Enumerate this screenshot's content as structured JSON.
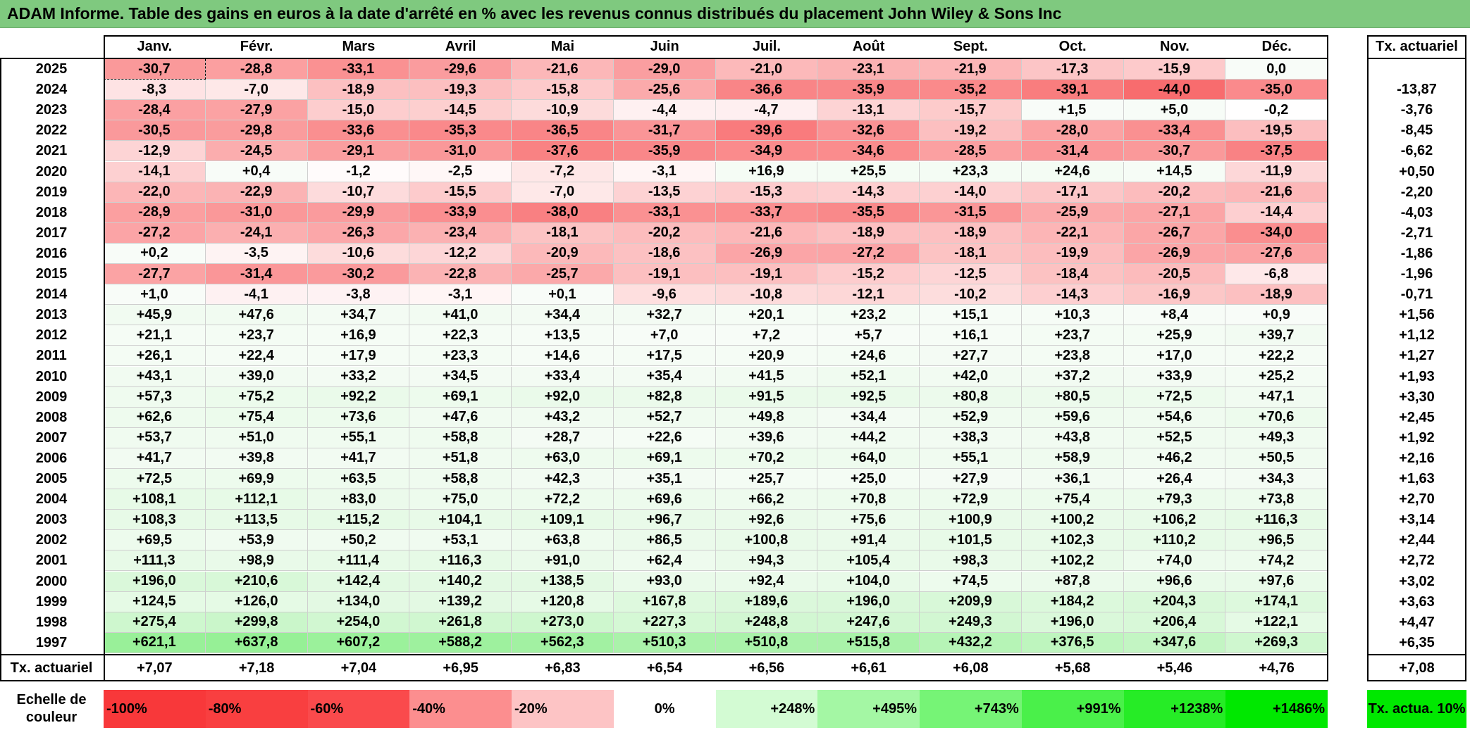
{
  "title": "ADAM Informe. Table des gains en euros à la date d'arrêté en % avec les revenus connus distribués du placement John Wiley & Sons Inc",
  "months": [
    "Janv.",
    "Févr.",
    "Mars",
    "Avril",
    "Mai",
    "Juin",
    "Juil.",
    "Août",
    "Sept.",
    "Oct.",
    "Nov.",
    "Déc."
  ],
  "rate_header": "Tx. actuariel",
  "rows": [
    {
      "year": "2025",
      "values": [
        "-30,7",
        "-28,8",
        "-33,1",
        "-29,6",
        "-21,6",
        "-29,0",
        "-21,0",
        "-23,1",
        "-21,9",
        "-17,3",
        "-15,9",
        "0,0"
      ],
      "rate": ""
    },
    {
      "year": "2024",
      "values": [
        "-8,3",
        "-7,0",
        "-18,9",
        "-19,3",
        "-15,8",
        "-25,6",
        "-36,6",
        "-35,9",
        "-35,2",
        "-39,1",
        "-44,0",
        "-35,0"
      ],
      "rate": "-13,87"
    },
    {
      "year": "2023",
      "values": [
        "-28,4",
        "-27,9",
        "-15,0",
        "-14,5",
        "-10,9",
        "-4,4",
        "-4,7",
        "-13,1",
        "-15,7",
        "+1,5",
        "+5,0",
        "-0,2"
      ],
      "rate": "-3,76"
    },
    {
      "year": "2022",
      "values": [
        "-30,5",
        "-29,8",
        "-33,6",
        "-35,3",
        "-36,5",
        "-31,7",
        "-39,6",
        "-32,6",
        "-19,2",
        "-28,0",
        "-33,4",
        "-19,5"
      ],
      "rate": "-8,45"
    },
    {
      "year": "2021",
      "values": [
        "-12,9",
        "-24,5",
        "-29,1",
        "-31,0",
        "-37,6",
        "-35,9",
        "-34,9",
        "-34,6",
        "-28,5",
        "-31,4",
        "-30,7",
        "-37,5"
      ],
      "rate": "-6,62"
    },
    {
      "year": "2020",
      "values": [
        "-14,1",
        "+0,4",
        "-1,2",
        "-2,5",
        "-7,2",
        "-3,1",
        "+16,9",
        "+25,5",
        "+23,3",
        "+24,6",
        "+14,5",
        "-11,9"
      ],
      "rate": "+0,50"
    },
    {
      "year": "2019",
      "values": [
        "-22,0",
        "-22,9",
        "-10,7",
        "-15,5",
        "-7,0",
        "-13,5",
        "-15,3",
        "-14,3",
        "-14,0",
        "-17,1",
        "-20,2",
        "-21,6"
      ],
      "rate": "-2,20"
    },
    {
      "year": "2018",
      "values": [
        "-28,9",
        "-31,0",
        "-29,9",
        "-33,9",
        "-38,0",
        "-33,1",
        "-33,7",
        "-35,5",
        "-31,5",
        "-25,9",
        "-27,1",
        "-14,4"
      ],
      "rate": "-4,03"
    },
    {
      "year": "2017",
      "values": [
        "-27,2",
        "-24,1",
        "-26,3",
        "-23,4",
        "-18,1",
        "-20,2",
        "-21,6",
        "-18,9",
        "-18,9",
        "-22,1",
        "-26,7",
        "-34,0"
      ],
      "rate": "-2,71"
    },
    {
      "year": "2016",
      "values": [
        "+0,2",
        "-3,5",
        "-10,6",
        "-12,2",
        "-20,9",
        "-18,6",
        "-26,9",
        "-27,2",
        "-18,1",
        "-19,9",
        "-26,9",
        "-27,6"
      ],
      "rate": "-1,86"
    },
    {
      "year": "2015",
      "values": [
        "-27,7",
        "-31,4",
        "-30,2",
        "-22,8",
        "-25,7",
        "-19,1",
        "-19,1",
        "-15,2",
        "-12,5",
        "-18,4",
        "-20,5",
        "-6,8"
      ],
      "rate": "-1,96"
    },
    {
      "year": "2014",
      "values": [
        "+1,0",
        "-4,1",
        "-3,8",
        "-3,1",
        "+0,1",
        "-9,6",
        "-10,8",
        "-12,1",
        "-10,2",
        "-14,3",
        "-16,9",
        "-18,9"
      ],
      "rate": "-0,71"
    },
    {
      "year": "2013",
      "values": [
        "+45,9",
        "+47,6",
        "+34,7",
        "+41,0",
        "+34,4",
        "+32,7",
        "+20,1",
        "+23,2",
        "+15,1",
        "+10,3",
        "+8,4",
        "+0,9"
      ],
      "rate": "+1,56"
    },
    {
      "year": "2012",
      "values": [
        "+21,1",
        "+23,7",
        "+16,9",
        "+22,3",
        "+13,5",
        "+7,0",
        "+7,2",
        "+5,7",
        "+16,1",
        "+23,7",
        "+25,9",
        "+39,7"
      ],
      "rate": "+1,12"
    },
    {
      "year": "2011",
      "values": [
        "+26,1",
        "+22,4",
        "+17,9",
        "+23,3",
        "+14,6",
        "+17,5",
        "+20,9",
        "+24,6",
        "+27,7",
        "+23,8",
        "+17,0",
        "+22,2"
      ],
      "rate": "+1,27"
    },
    {
      "year": "2010",
      "values": [
        "+43,1",
        "+39,0",
        "+33,2",
        "+34,5",
        "+33,4",
        "+35,4",
        "+41,5",
        "+52,1",
        "+42,0",
        "+37,2",
        "+33,9",
        "+25,2"
      ],
      "rate": "+1,93"
    },
    {
      "year": "2009",
      "values": [
        "+57,3",
        "+75,2",
        "+92,2",
        "+69,1",
        "+92,0",
        "+82,8",
        "+91,5",
        "+92,5",
        "+80,8",
        "+80,5",
        "+72,5",
        "+47,1"
      ],
      "rate": "+3,30"
    },
    {
      "year": "2008",
      "values": [
        "+62,6",
        "+75,4",
        "+73,6",
        "+47,6",
        "+43,2",
        "+52,7",
        "+49,8",
        "+34,4",
        "+52,9",
        "+59,6",
        "+54,6",
        "+70,6"
      ],
      "rate": "+2,45"
    },
    {
      "year": "2007",
      "values": [
        "+53,7",
        "+51,0",
        "+55,1",
        "+58,8",
        "+28,7",
        "+22,6",
        "+39,6",
        "+44,2",
        "+38,3",
        "+43,8",
        "+52,5",
        "+49,3"
      ],
      "rate": "+1,92"
    },
    {
      "year": "2006",
      "values": [
        "+41,7",
        "+39,8",
        "+41,7",
        "+51,8",
        "+63,0",
        "+69,1",
        "+70,2",
        "+64,0",
        "+55,1",
        "+58,9",
        "+46,2",
        "+50,5"
      ],
      "rate": "+2,16"
    },
    {
      "year": "2005",
      "values": [
        "+72,5",
        "+69,9",
        "+63,5",
        "+58,8",
        "+42,3",
        "+35,1",
        "+25,7",
        "+25,0",
        "+27,9",
        "+36,1",
        "+26,4",
        "+34,3"
      ],
      "rate": "+1,63"
    },
    {
      "year": "2004",
      "values": [
        "+108,1",
        "+112,1",
        "+83,0",
        "+75,0",
        "+72,2",
        "+69,6",
        "+66,2",
        "+70,8",
        "+72,9",
        "+75,4",
        "+79,3",
        "+73,8"
      ],
      "rate": "+2,70"
    },
    {
      "year": "2003",
      "values": [
        "+108,3",
        "+113,5",
        "+115,2",
        "+104,1",
        "+109,1",
        "+96,7",
        "+92,6",
        "+75,6",
        "+100,9",
        "+100,2",
        "+106,2",
        "+116,3"
      ],
      "rate": "+3,14"
    },
    {
      "year": "2002",
      "values": [
        "+69,5",
        "+53,9",
        "+50,2",
        "+53,1",
        "+63,8",
        "+86,5",
        "+100,8",
        "+91,4",
        "+101,5",
        "+102,3",
        "+110,2",
        "+96,5"
      ],
      "rate": "+2,44"
    },
    {
      "year": "2001",
      "values": [
        "+111,3",
        "+98,9",
        "+111,4",
        "+116,3",
        "+91,0",
        "+62,4",
        "+94,3",
        "+105,4",
        "+98,3",
        "+102,2",
        "+74,0",
        "+74,2"
      ],
      "rate": "+2,72"
    },
    {
      "year": "2000",
      "values": [
        "+196,0",
        "+210,6",
        "+142,4",
        "+140,2",
        "+138,5",
        "+93,0",
        "+92,4",
        "+104,0",
        "+74,5",
        "+87,8",
        "+96,6",
        "+97,6"
      ],
      "rate": "+3,02"
    },
    {
      "year": "1999",
      "values": [
        "+124,5",
        "+126,0",
        "+134,0",
        "+139,2",
        "+120,8",
        "+167,8",
        "+189,6",
        "+196,0",
        "+209,9",
        "+184,2",
        "+204,3",
        "+174,1"
      ],
      "rate": "+3,63"
    },
    {
      "year": "1998",
      "values": [
        "+275,4",
        "+299,8",
        "+254,0",
        "+261,8",
        "+273,0",
        "+227,3",
        "+248,8",
        "+247,6",
        "+249,3",
        "+196,0",
        "+206,4",
        "+122,1"
      ],
      "rate": "+4,47"
    },
    {
      "year": "1997",
      "values": [
        "+621,1",
        "+637,8",
        "+607,2",
        "+588,2",
        "+562,3",
        "+510,3",
        "+510,8",
        "+515,8",
        "+432,2",
        "+376,5",
        "+347,6",
        "+269,3"
      ],
      "rate": "+6,35"
    }
  ],
  "summary": {
    "label": "Tx. actuariel",
    "values": [
      "+7,07",
      "+7,18",
      "+7,04",
      "+6,95",
      "+6,83",
      "+6,54",
      "+6,56",
      "+6,61",
      "+6,08",
      "+5,68",
      "+5,46",
      "+4,76"
    ],
    "rate": "+7,08"
  },
  "legend": {
    "label": "Echelle de couleur",
    "scale": [
      {
        "text": "-100%",
        "color": "#f8383a",
        "align": "left"
      },
      {
        "text": "-80%",
        "color": "#f93f40",
        "align": "left"
      },
      {
        "text": "-60%",
        "color": "#fa4a4c",
        "align": "left"
      },
      {
        "text": "-40%",
        "color": "#fc8e8f",
        "align": "left"
      },
      {
        "text": "-20%",
        "color": "#fdc4c5",
        "align": "left"
      },
      {
        "text": "0%",
        "color": "#ffffff",
        "align": "center"
      },
      {
        "text": "+248%",
        "color": "#d3fbd3",
        "align": "right"
      },
      {
        "text": "+495%",
        "color": "#a4f7a4",
        "align": "right"
      },
      {
        "text": "+743%",
        "color": "#76f476",
        "align": "right"
      },
      {
        "text": "+991%",
        "color": "#4af04a",
        "align": "right"
      },
      {
        "text": "+1238%",
        "color": "#26ec26",
        "align": "right"
      },
      {
        "text": "+1486%",
        "color": "#00e800",
        "align": "right"
      }
    ],
    "rate_box": {
      "text": "Tx. actua. 10%",
      "color": "#00e800"
    }
  },
  "colors": {
    "title_bg": "#7fc97f",
    "neg_max": "#f8696b",
    "pos_max": "#63be7b"
  }
}
